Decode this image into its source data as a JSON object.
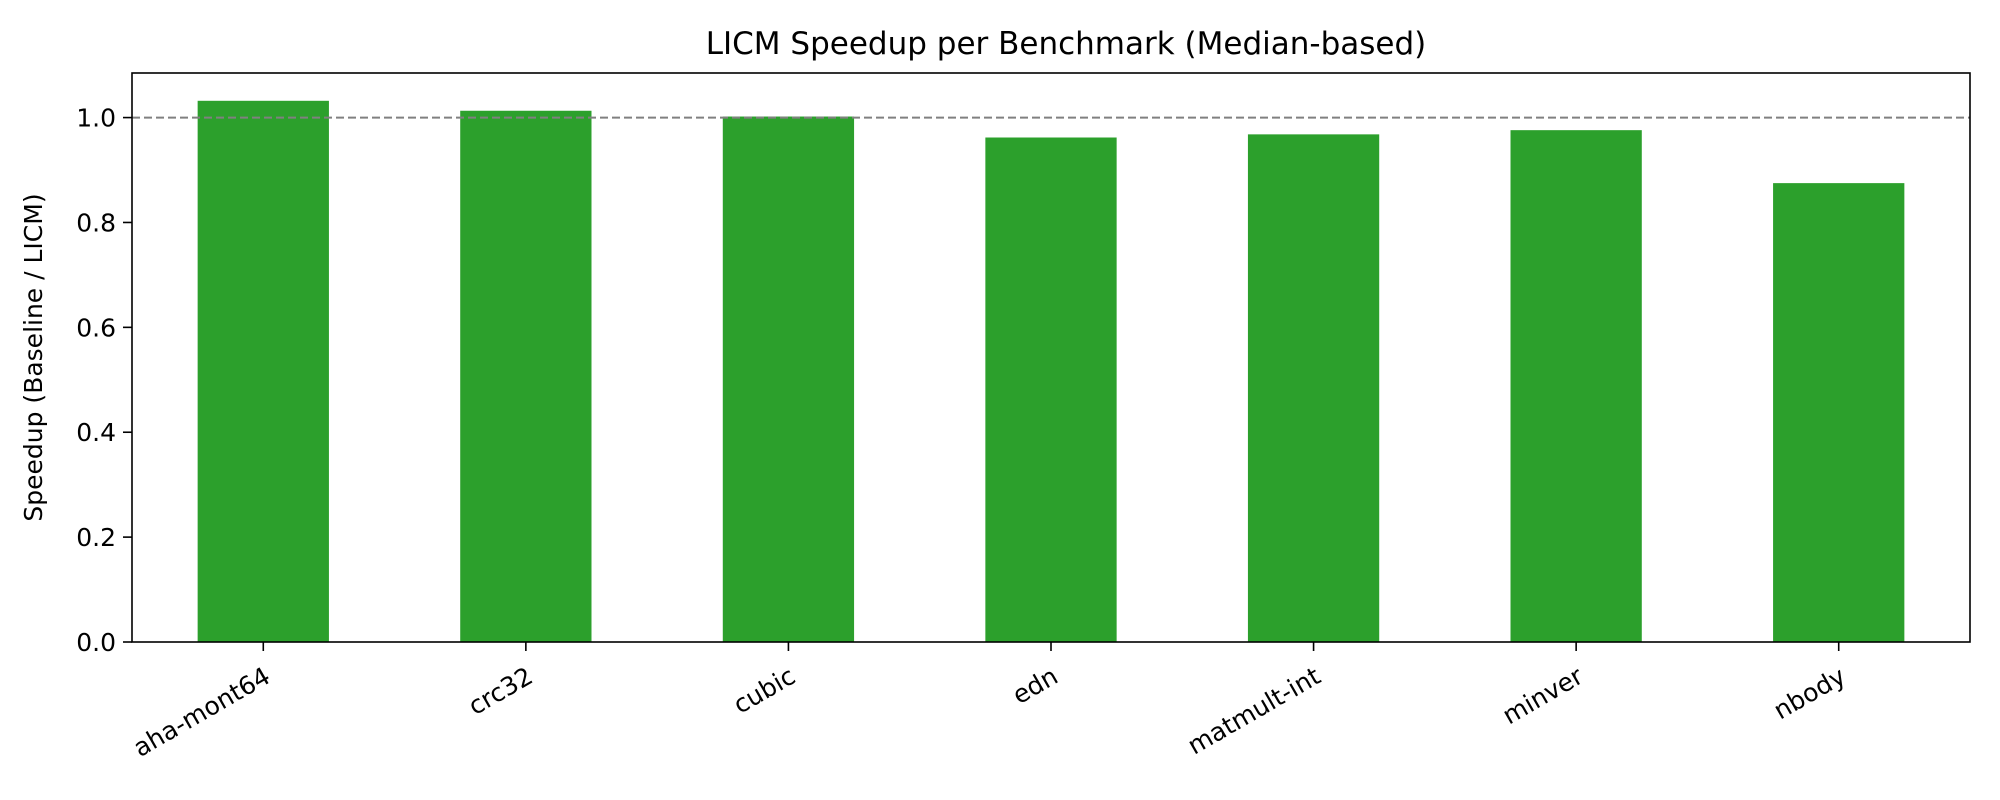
{
  "chart_data": {
    "type": "bar",
    "title": "LICM Speedup per Benchmark (Median-based)",
    "xlabel": "",
    "ylabel": "Speedup (Baseline / LICM)",
    "categories": [
      "aha-mont64",
      "crc32",
      "cubic",
      "edn",
      "matmult-int",
      "minver",
      "nbody"
    ],
    "values": [
      1.032,
      1.013,
      1.002,
      0.962,
      0.968,
      0.976,
      0.875
    ],
    "ylim": [
      0,
      1.085
    ],
    "yticks": [
      0.0,
      0.2,
      0.4,
      0.6,
      0.8,
      1.0
    ],
    "ytick_labels": [
      "0.0",
      "0.2",
      "0.4",
      "0.6",
      "0.8",
      "1.0"
    ],
    "reference_line": 1.0,
    "bar_color": "#2ca02c",
    "reference_line_color": "#808080",
    "grid": false,
    "legend": "none"
  }
}
